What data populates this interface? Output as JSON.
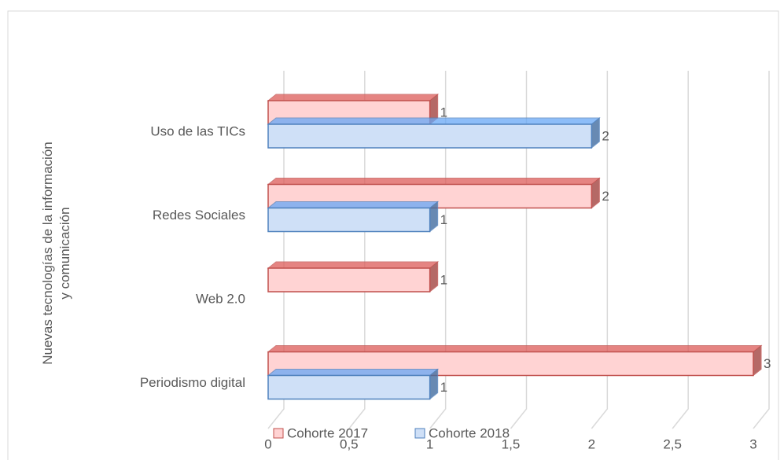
{
  "chart_data": {
    "type": "bar3d-horizontal",
    "y_label": [
      "Nuevas tecnologías de la información",
      "y comunicación"
    ],
    "categories": [
      "Uso de las TICs",
      "Redes Sociales",
      "Web 2.0",
      "Periodismo digital"
    ],
    "series": [
      {
        "name": "Cohorte 2017",
        "color": "#c0504d",
        "fill": "#ffd3d3",
        "values": [
          1,
          2,
          1,
          3
        ]
      },
      {
        "name": "Cohorte 2018",
        "color": "#4f81bd",
        "fill": "#cfe0f7",
        "values": [
          2,
          1,
          null,
          1
        ]
      }
    ],
    "xlim": [
      0,
      3
    ],
    "xticks": [
      0,
      {
        "value": 0.5,
        "label": "0,5"
      },
      1,
      {
        "value": 1.5,
        "label": "1,5"
      },
      2,
      {
        "value": 2.5,
        "label": "2,5"
      },
      3
    ],
    "grid": true,
    "legend": "bottom"
  }
}
